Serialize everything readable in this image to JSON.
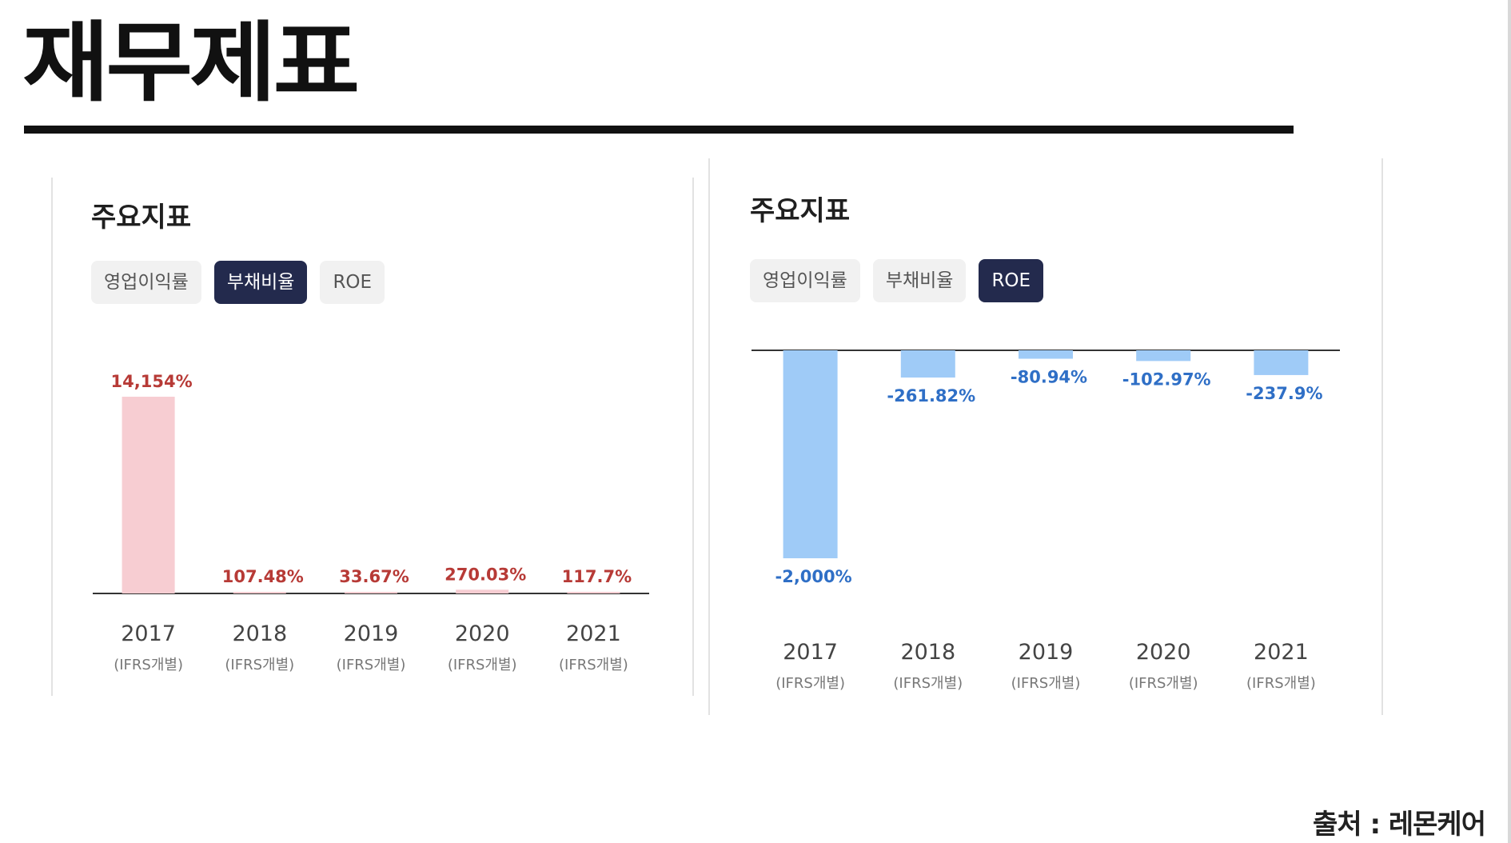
{
  "page": {
    "title": "재무제표",
    "source": "출처 : 레몬케어"
  },
  "panels": [
    {
      "title": "주요지표",
      "tabs": [
        "영업이익률",
        "부채비율",
        "ROE"
      ],
      "active_tab": 1
    },
    {
      "title": "주요지표",
      "tabs": [
        "영업이익률",
        "부채비율",
        "ROE"
      ],
      "active_tab": 2
    }
  ],
  "chart_data": [
    {
      "type": "bar",
      "categories": [
        "2017",
        "2018",
        "2019",
        "2020",
        "2021"
      ],
      "category_sublabel": "(IFRS개별)",
      "values": [
        14154,
        107.48,
        33.67,
        270.03,
        117.7
      ],
      "value_labels": [
        "14,154%",
        "107.48%",
        "33.67%",
        "270.03%",
        "117.7%"
      ],
      "ylim": [
        0,
        14154
      ],
      "bar_color": "#f7cdd2",
      "label_color": "#b73a36",
      "grid": false
    },
    {
      "type": "bar",
      "categories": [
        "2017",
        "2018",
        "2019",
        "2020",
        "2021"
      ],
      "category_sublabel": "(IFRS개별)",
      "values": [
        -2000,
        -261.82,
        -80.94,
        -102.97,
        -237.9
      ],
      "value_labels": [
        "-2,000%",
        "-261.82%",
        "-80.94%",
        "-102.97%",
        "-237.9%"
      ],
      "ylim": [
        -2000,
        0
      ],
      "bar_color": "#9fcbf7",
      "label_color": "#2f6fc6",
      "grid": false
    }
  ]
}
